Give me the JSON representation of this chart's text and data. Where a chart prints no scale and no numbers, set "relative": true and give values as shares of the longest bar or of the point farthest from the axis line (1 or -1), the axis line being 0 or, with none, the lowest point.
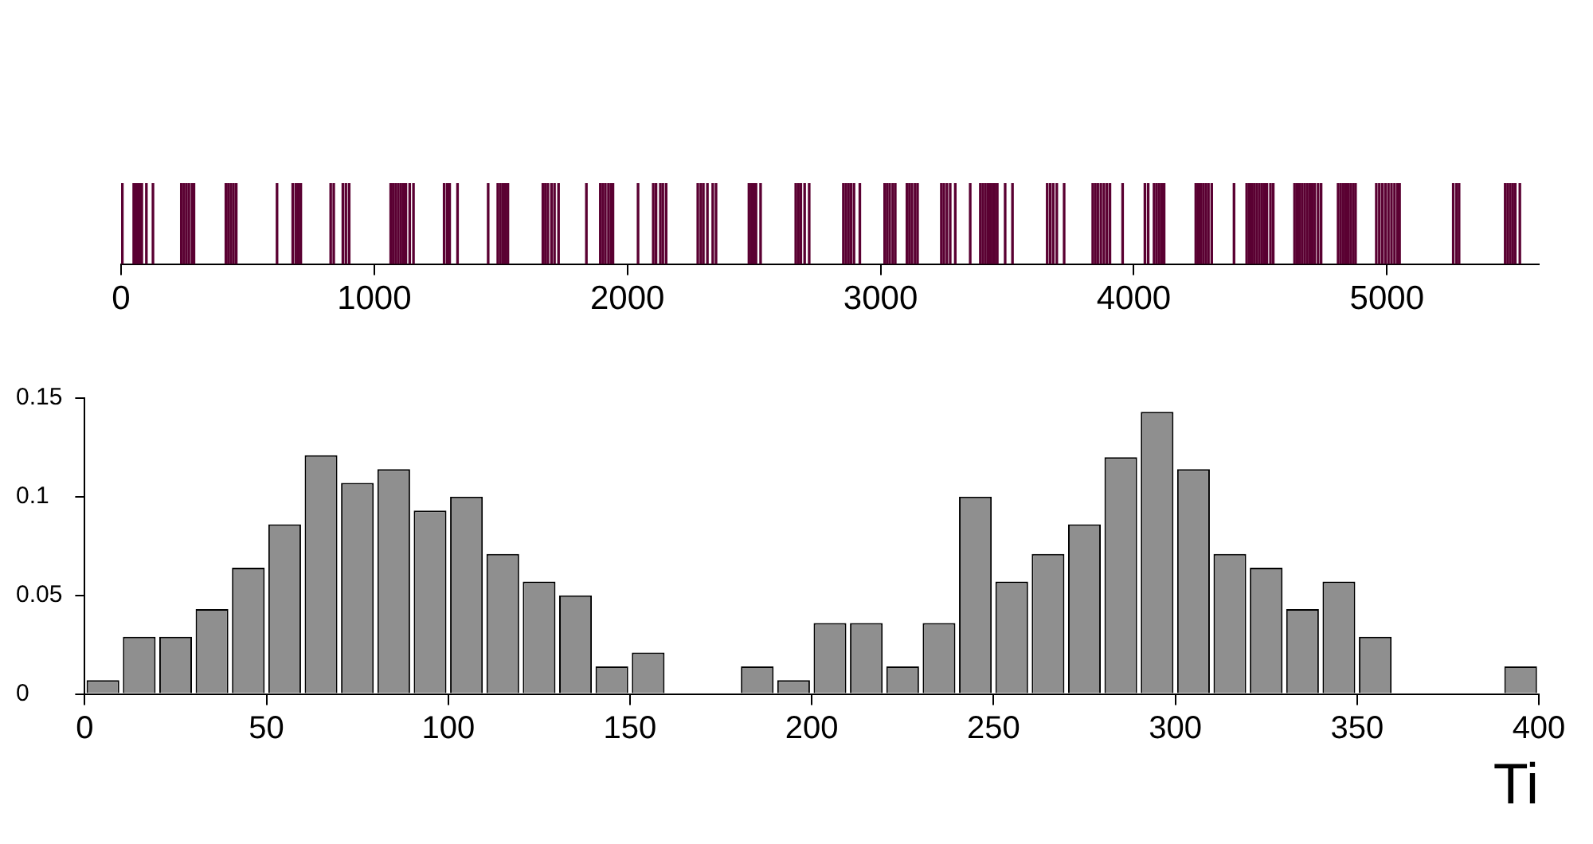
{
  "chart_data": [
    {
      "type": "bar",
      "relative": true,
      "color": "#5a0032",
      "tick_labels": "x",
      "grid": false,
      "x": [
        5,
        50,
        58,
        66,
        74,
        82,
        100,
        126,
        238,
        248,
        258,
        268,
        280,
        288,
        414,
        424,
        434,
        444,
        455,
        616,
        678,
        690,
        700,
        710,
        828,
        840,
        876,
        888,
        901,
        1065,
        1075,
        1085,
        1095,
        1105,
        1115,
        1125,
        1140,
        1155,
        1276,
        1288,
        1298,
        1329,
        1450,
        1488,
        1498,
        1508,
        1518,
        1528,
        1666,
        1676,
        1686,
        1700,
        1712,
        1728,
        1838,
        1893,
        1903,
        1913,
        1925,
        1935,
        1943,
        2042,
        2102,
        2113,
        2130,
        2140,
        2153,
        2278,
        2290,
        2300,
        2316,
        2337,
        2350,
        2480,
        2490,
        2500,
        2508,
        2526,
        2665,
        2675,
        2685,
        2700,
        2718,
        2853,
        2863,
        2873,
        2883,
        2895,
        2918,
        3016,
        3026,
        3036,
        3048,
        3058,
        3104,
        3114,
        3124,
        3136,
        3146,
        3240,
        3250,
        3262,
        3275,
        3295,
        3354,
        3394,
        3404,
        3414,
        3424,
        3434,
        3444,
        3452,
        3461,
        3492,
        3521,
        3658,
        3670,
        3682,
        3696,
        3725,
        3838,
        3848,
        3858,
        3870,
        3882,
        3894,
        3906,
        3956,
        4044,
        4057,
        4080,
        4090,
        4100,
        4110,
        4120,
        4245,
        4255,
        4265,
        4275,
        4285,
        4295,
        4308,
        4396,
        4446,
        4456,
        4466,
        4476,
        4486,
        4496,
        4506,
        4516,
        4526,
        4540,
        4551,
        4635,
        4645,
        4655,
        4665,
        4675,
        4685,
        4695,
        4705,
        4715,
        4728,
        4740,
        4807,
        4817,
        4827,
        4837,
        4847,
        4857,
        4867,
        4876,
        4958,
        4970,
        4982,
        4994,
        5006,
        5018,
        5030,
        5042,
        5050,
        5262,
        5275,
        5285,
        5467,
        5477,
        5487,
        5497,
        5507,
        5525
      ],
      "values": [
        1,
        1,
        1,
        1,
        1,
        1,
        1,
        1,
        1,
        1,
        1,
        1,
        1,
        1,
        1,
        1,
        1,
        1,
        1,
        1,
        1,
        1,
        1,
        1,
        1,
        1,
        1,
        1,
        1,
        1,
        1,
        1,
        1,
        1,
        1,
        1,
        1,
        1,
        1,
        1,
        1,
        1,
        1,
        1,
        1,
        1,
        1,
        1,
        1,
        1,
        1,
        1,
        1,
        1,
        1,
        1,
        1,
        1,
        1,
        1,
        1,
        1,
        1,
        1,
        1,
        1,
        1,
        1,
        1,
        1,
        1,
        1,
        1,
        1,
        1,
        1,
        1,
        1,
        1,
        1,
        1,
        1,
        1,
        1,
        1,
        1,
        1,
        1,
        1,
        1,
        1,
        1,
        1,
        1,
        1,
        1,
        1,
        1,
        1,
        1,
        1,
        1,
        1,
        1,
        1,
        1,
        1,
        1,
        1,
        1,
        1,
        1,
        1,
        1,
        1,
        1,
        1,
        1,
        1,
        1,
        1,
        1,
        1,
        1,
        1,
        1,
        1,
        1,
        1,
        1,
        1,
        1,
        1,
        1,
        1,
        1,
        1,
        1,
        1,
        1,
        1,
        1,
        1,
        1,
        1,
        1,
        1,
        1,
        1,
        1,
        1,
        1,
        1,
        1,
        1,
        1,
        1,
        1,
        1,
        1,
        1,
        1,
        1,
        1,
        1,
        1,
        1,
        1,
        1,
        1,
        1,
        1,
        1,
        1,
        1,
        1,
        1,
        1,
        1,
        1,
        1,
        1,
        1,
        1,
        1,
        1,
        1,
        1,
        1,
        1,
        1
      ],
      "xlim": [
        0,
        5600
      ],
      "xticks": [
        0,
        1000,
        2000,
        3000,
        4000,
        5000
      ]
    },
    {
      "type": "histogram",
      "color": "#8f8f8f",
      "grid": false,
      "xlabel": "Ti",
      "bins": [
        0,
        10,
        20,
        30,
        40,
        50,
        60,
        70,
        80,
        90,
        100,
        110,
        120,
        130,
        140,
        150,
        160,
        170,
        180,
        190,
        200,
        210,
        220,
        230,
        240,
        250,
        260,
        270,
        280,
        290,
        300,
        310,
        320,
        330,
        340,
        350,
        360,
        370,
        380,
        390,
        400
      ],
      "values": [
        0.007,
        0.029,
        0.029,
        0.043,
        0.064,
        0.086,
        0.121,
        0.107,
        0.114,
        0.093,
        0.1,
        0.071,
        0.057,
        0.05,
        0.014,
        0.021,
        0,
        0,
        0.014,
        0.007,
        0.036,
        0.036,
        0.014,
        0.036,
        0.1,
        0.057,
        0.071,
        0.086,
        0.12,
        0.143,
        0.114,
        0.071,
        0.064,
        0.043,
        0.057,
        0.029,
        0,
        0,
        0,
        0.014
      ],
      "xlim": [
        0,
        400
      ],
      "xticks": [
        0,
        50,
        100,
        150,
        200,
        250,
        300,
        350,
        400
      ],
      "ylim": [
        0,
        0.15
      ],
      "yticks": [
        0,
        0.05,
        0.1,
        0.15
      ]
    }
  ]
}
